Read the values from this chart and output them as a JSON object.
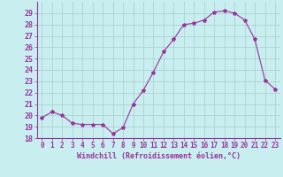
{
  "x": [
    0,
    1,
    2,
    3,
    4,
    5,
    6,
    7,
    8,
    9,
    10,
    11,
    12,
    13,
    14,
    15,
    16,
    17,
    18,
    19,
    20,
    21,
    22,
    23
  ],
  "y": [
    19.8,
    20.3,
    20.0,
    19.3,
    19.2,
    19.2,
    19.2,
    18.4,
    18.9,
    21.0,
    22.2,
    23.8,
    25.6,
    26.7,
    28.0,
    28.1,
    28.4,
    29.1,
    29.2,
    29.0,
    28.4,
    26.7,
    23.1,
    22.3
  ],
  "line_color": "#993399",
  "marker": "*",
  "marker_size": 3,
  "bg_color": "#c8eef0",
  "grid_color": "#aacccc",
  "xlabel": "Windchill (Refroidissement éolien,°C)",
  "xlabel_color": "#993399",
  "tick_color": "#993399",
  "label_color": "#993399",
  "ylim": [
    18,
    30
  ],
  "yticks": [
    18,
    19,
    20,
    21,
    22,
    23,
    24,
    25,
    26,
    27,
    28,
    29
  ],
  "xlim": [
    -0.5,
    23.5
  ],
  "xticks": [
    0,
    1,
    2,
    3,
    4,
    5,
    6,
    7,
    8,
    9,
    10,
    11,
    12,
    13,
    14,
    15,
    16,
    17,
    18,
    19,
    20,
    21,
    22,
    23
  ],
  "tick_fontsize": 5.5,
  "xlabel_fontsize": 6.0,
  "ytick_fontsize": 6.0
}
